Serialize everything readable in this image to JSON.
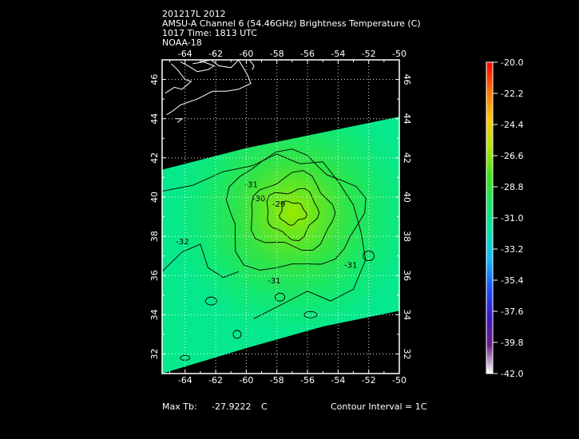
{
  "header": {
    "line1": "201217L 2012",
    "line2": "AMSU-A Channel 6 (54.46GHz) Brightness Temperature (C)",
    "line3": "1017 Time: 1813 UTC",
    "line4": "NOAA-18"
  },
  "footer": {
    "max_tb_label": "Max Tb:",
    "max_tb_value": "-27.9222",
    "max_tb_unit": "C",
    "contour_interval": "Contour Interval = 1C"
  },
  "chart_data": {
    "type": "heatmap",
    "xlim": [
      -65.5,
      -50
    ],
    "ylim": [
      31,
      47
    ],
    "x_ticks": [
      -64,
      -62,
      -60,
      -58,
      -56,
      -54,
      -52,
      -50
    ],
    "y_ticks": [
      32,
      34,
      36,
      38,
      40,
      42,
      44,
      46
    ],
    "grid": true,
    "swath_edges": {
      "north": [
        [
          -65.5,
          41.4
        ],
        [
          -60,
          42.5
        ],
        [
          -55,
          43.3
        ],
        [
          -50,
          44.1
        ]
      ],
      "south": [
        [
          -65.5,
          31.0
        ],
        [
          -60,
          32.3
        ],
        [
          -55,
          33.4
        ],
        [
          -50,
          34.2
        ]
      ]
    },
    "warm_core": {
      "lon": -57,
      "lat": 39.2,
      "max_tb": -27.9222
    },
    "contour_labels": [
      {
        "text": "-31",
        "lon": -60.1,
        "lat": 40.5
      },
      {
        "text": "-30",
        "lon": -59.6,
        "lat": 39.8
      },
      {
        "text": "-29",
        "lon": -58.3,
        "lat": 39.5
      },
      {
        "text": "-32",
        "lon": -64.6,
        "lat": 37.6
      },
      {
        "text": "-31",
        "lon": -58.6,
        "lat": 35.6
      },
      {
        "text": "-31",
        "lon": -53.6,
        "lat": 36.4
      }
    ],
    "colorbar": {
      "min": -42.0,
      "max": -20.0,
      "ticks": [
        "-20.0",
        "-22.2",
        "-24.4",
        "-26.6",
        "-28.8",
        "-31.0",
        "-33.2",
        "-35.4",
        "-37.6",
        "-39.8",
        "-42.0"
      ],
      "colors": [
        "#ffffff",
        "#6a1f85",
        "#3a14c8",
        "#1a50ff",
        "#10b8ff",
        "#00e6b0",
        "#14e864",
        "#3ce614",
        "#b4e600",
        "#ffc800",
        "#ff7000",
        "#ff0000"
      ]
    },
    "colors": {
      "background": "#000000",
      "frame": "#ffffff",
      "contour": "#000000",
      "coast": "#ffffff"
    }
  }
}
